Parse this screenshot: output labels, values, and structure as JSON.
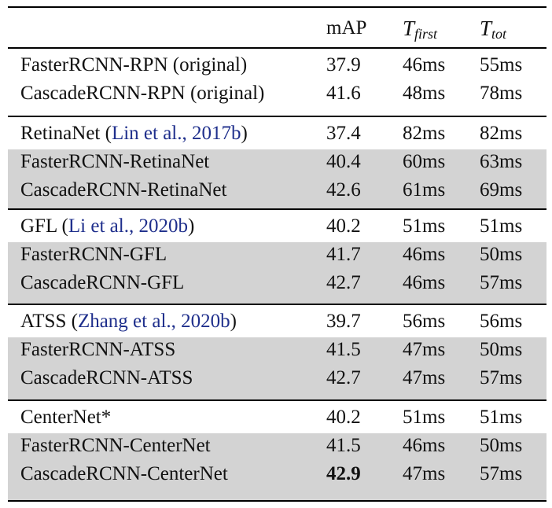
{
  "header": {
    "method": "",
    "map": "mAP",
    "t_first_base": "T",
    "t_first_sub": "first",
    "t_tot_base": "T",
    "t_tot_sub": "tot"
  },
  "groups": [
    {
      "rows": [
        {
          "method": "FasterRCNN-RPN (original)",
          "cite": "",
          "suffix": "",
          "map": "37.9",
          "t_first": "46ms",
          "t_tot": "55ms",
          "shaded": false,
          "bold_map": false
        },
        {
          "method": "CascadeRCNN-RPN (original)",
          "cite": "",
          "suffix": "",
          "map": "41.6",
          "t_first": "48ms",
          "t_tot": "78ms",
          "shaded": false,
          "bold_map": false
        }
      ]
    },
    {
      "rows": [
        {
          "method": "RetinaNet (",
          "cite": "Lin et al., 2017b",
          "suffix": ")",
          "map": "37.4",
          "t_first": "82ms",
          "t_tot": "82ms",
          "shaded": false,
          "bold_map": false
        },
        {
          "method": "FasterRCNN-RetinaNet",
          "cite": "",
          "suffix": "",
          "map": "40.4",
          "t_first": "60ms",
          "t_tot": "63ms",
          "shaded": true,
          "bold_map": false
        },
        {
          "method": "CascadeRCNN-RetinaNet",
          "cite": "",
          "suffix": "",
          "map": "42.6",
          "t_first": "61ms",
          "t_tot": "69ms",
          "shaded": true,
          "bold_map": false
        }
      ]
    },
    {
      "rows": [
        {
          "method": "GFL (",
          "cite": "Li et al., 2020b",
          "suffix": ")",
          "map": "40.2",
          "t_first": "51ms",
          "t_tot": "51ms",
          "shaded": false,
          "bold_map": false
        },
        {
          "method": "FasterRCNN-GFL",
          "cite": "",
          "suffix": "",
          "map": "41.7",
          "t_first": "46ms",
          "t_tot": "50ms",
          "shaded": true,
          "bold_map": false
        },
        {
          "method": "CascadeRCNN-GFL",
          "cite": "",
          "suffix": "",
          "map": "42.7",
          "t_first": "46ms",
          "t_tot": "57ms",
          "shaded": true,
          "bold_map": false
        }
      ]
    },
    {
      "rows": [
        {
          "method": "ATSS (",
          "cite": "Zhang et al., 2020b",
          "suffix": ")",
          "map": "39.7",
          "t_first": "56ms",
          "t_tot": "56ms",
          "shaded": false,
          "bold_map": false
        },
        {
          "method": "FasterRCNN-ATSS",
          "cite": "",
          "suffix": "",
          "map": "41.5",
          "t_first": "47ms",
          "t_tot": "50ms",
          "shaded": true,
          "bold_map": false
        },
        {
          "method": "CascadeRCNN-ATSS",
          "cite": "",
          "suffix": "",
          "map": "42.7",
          "t_first": "47ms",
          "t_tot": "57ms",
          "shaded": true,
          "bold_map": false
        }
      ]
    },
    {
      "rows": [
        {
          "method": "CenterNet*",
          "cite": "",
          "suffix": "",
          "map": "40.2",
          "t_first": "51ms",
          "t_tot": "51ms",
          "shaded": false,
          "bold_map": false
        },
        {
          "method": "FasterRCNN-CenterNet",
          "cite": "",
          "suffix": "",
          "map": "41.5",
          "t_first": "46ms",
          "t_tot": "50ms",
          "shaded": true,
          "bold_map": false
        },
        {
          "method": "CascadeRCNN-CenterNet",
          "cite": "",
          "suffix": "",
          "map": "42.9",
          "t_first": "47ms",
          "t_tot": "57ms",
          "shaded": true,
          "bold_map": true
        }
      ]
    }
  ]
}
